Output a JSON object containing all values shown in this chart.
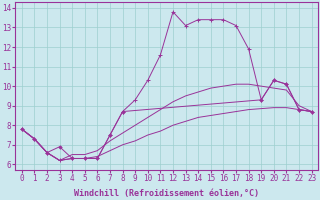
{
  "xlabel": "Windchill (Refroidissement éolien,°C)",
  "background_color": "#cce8ee",
  "grid_color": "#9ecfcf",
  "line_color": "#993399",
  "xlim": [
    -0.5,
    23.5
  ],
  "ylim": [
    5.7,
    14.3
  ],
  "xticks": [
    0,
    1,
    2,
    3,
    4,
    5,
    6,
    7,
    8,
    9,
    10,
    11,
    12,
    13,
    14,
    15,
    16,
    17,
    18,
    19,
    20,
    21,
    22,
    23
  ],
  "yticks": [
    6,
    7,
    8,
    9,
    10,
    11,
    12,
    13,
    14
  ],
  "curves": [
    {
      "x": [
        0,
        1,
        2,
        3,
        4,
        5,
        6,
        7,
        8,
        9,
        10,
        11,
        12,
        13,
        14,
        15,
        16,
        17,
        18,
        19,
        20,
        21,
        22,
        23
      ],
      "y": [
        7.8,
        7.3,
        6.6,
        6.2,
        6.3,
        6.3,
        6.3,
        7.5,
        8.7,
        9.3,
        10.3,
        11.6,
        13.8,
        13.1,
        13.4,
        13.4,
        13.4,
        13.1,
        11.9,
        9.3,
        10.3,
        10.1,
        8.8,
        8.7
      ],
      "marker": "+"
    },
    {
      "x": [
        0,
        1,
        2,
        3,
        4,
        5,
        6,
        7,
        8,
        9,
        10,
        11,
        12,
        13,
        14,
        15,
        16,
        17,
        18,
        19,
        20,
        21,
        22,
        23
      ],
      "y": [
        7.8,
        7.3,
        6.6,
        6.2,
        6.5,
        6.5,
        6.7,
        7.2,
        7.6,
        8.0,
        8.4,
        8.8,
        9.2,
        9.5,
        9.7,
        9.9,
        10.0,
        10.1,
        10.1,
        10.0,
        9.9,
        9.8,
        9.0,
        8.7
      ],
      "marker": null
    },
    {
      "x": [
        0,
        1,
        2,
        3,
        4,
        5,
        6,
        7,
        8,
        9,
        10,
        11,
        12,
        13,
        14,
        15,
        16,
        17,
        18,
        19,
        20,
        21,
        22,
        23
      ],
      "y": [
        7.8,
        7.3,
        6.6,
        6.2,
        6.3,
        6.3,
        6.4,
        6.7,
        7.0,
        7.2,
        7.5,
        7.7,
        8.0,
        8.2,
        8.4,
        8.5,
        8.6,
        8.7,
        8.8,
        8.85,
        8.9,
        8.9,
        8.8,
        8.7
      ],
      "marker": null
    },
    {
      "x": [
        0,
        1,
        2,
        3,
        4,
        5,
        6,
        7,
        8,
        19,
        20,
        21,
        22,
        23
      ],
      "y": [
        7.8,
        7.3,
        6.6,
        6.9,
        6.3,
        6.3,
        6.3,
        7.5,
        8.7,
        9.3,
        10.3,
        10.1,
        8.8,
        8.7
      ],
      "marker": "D"
    }
  ],
  "fontsize_label": 6,
  "fontsize_tick": 5.5,
  "tick_color": "#993399",
  "label_color": "#993399",
  "spine_color": "#993399"
}
